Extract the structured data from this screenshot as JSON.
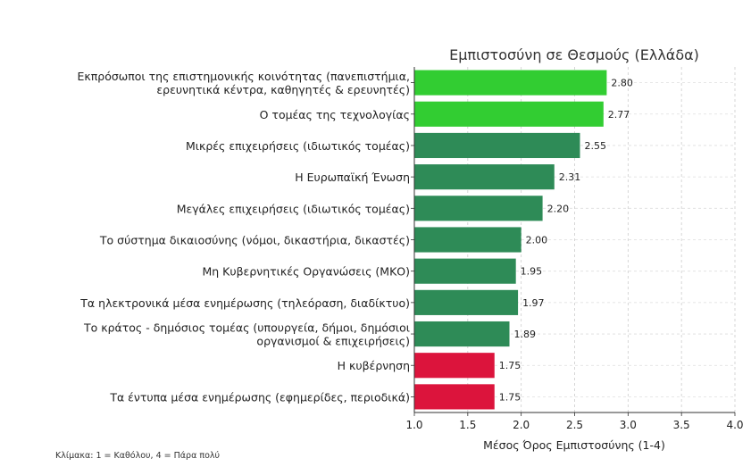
{
  "chart_data": {
    "type": "bar",
    "orientation": "horizontal",
    "title": "Εμπιστοσύνη σε Θεσμούς (Ελλάδα)",
    "xlabel": "Μέσος Όρος Εμπιστοσύνης (1-4)",
    "ylabel": "",
    "xlim": [
      1.0,
      4.0
    ],
    "xticks": [
      "1.0",
      "1.5",
      "2.0",
      "2.5",
      "3.0",
      "3.5",
      "4.0"
    ],
    "grid": true,
    "footnote": "Κλίμακα: 1 = Καθόλου, 4 = Πάρα πολύ",
    "colors": {
      "high": "#32cd32",
      "medium": "#2e8b57",
      "low": "#dc143c"
    },
    "bars": [
      {
        "label_lines": [
          "Εκπρόσωποι της επιστημονικής κοινότητας (πανεπιστήμια,",
          "ερευνητικά κέντρα, καθηγητές & ερευνητές)"
        ],
        "value": 2.8,
        "value_label": "2.80",
        "color": "#32cd32"
      },
      {
        "label_lines": [
          "Ο τομέας της τεχνολογίας"
        ],
        "value": 2.77,
        "value_label": "2.77",
        "color": "#32cd32"
      },
      {
        "label_lines": [
          "Μικρές επιχειρήσεις (ιδιωτικός τομέας)"
        ],
        "value": 2.55,
        "value_label": "2.55",
        "color": "#2e8b57"
      },
      {
        "label_lines": [
          "Η Ευρωπαϊκή Ένωση"
        ],
        "value": 2.31,
        "value_label": "2.31",
        "color": "#2e8b57"
      },
      {
        "label_lines": [
          "Μεγάλες επιχειρήσεις (ιδιωτικός τομέας)"
        ],
        "value": 2.2,
        "value_label": "2.20",
        "color": "#2e8b57"
      },
      {
        "label_lines": [
          "Το σύστημα δικαιοσύνης (νόμοι, δικαστήρια, δικαστές)"
        ],
        "value": 2.0,
        "value_label": "2.00",
        "color": "#2e8b57"
      },
      {
        "label_lines": [
          "Μη Κυβερνητικές Οργανώσεις (ΜΚΟ)"
        ],
        "value": 1.95,
        "value_label": "1.95",
        "color": "#2e8b57"
      },
      {
        "label_lines": [
          "Τα ηλεκτρονικά μέσα ενημέρωσης (τηλεόραση, διαδίκτυο)"
        ],
        "value": 1.97,
        "value_label": "1.97",
        "color": "#2e8b57"
      },
      {
        "label_lines": [
          "Το κράτος - δημόσιος τομέας (υπουργεία, δήμοι, δημόσιοι",
          "οργανισμοί & επιχειρήσεις)"
        ],
        "value": 1.89,
        "value_label": "1.89",
        "color": "#2e8b57"
      },
      {
        "label_lines": [
          "Η κυβέρνηση"
        ],
        "value": 1.75,
        "value_label": "1.75",
        "color": "#dc143c"
      },
      {
        "label_lines": [
          "Τα έντυπα μέσα ενημέρωσης (εφημερίδες, περιοδικά)"
        ],
        "value": 1.75,
        "value_label": "1.75",
        "color": "#dc143c"
      }
    ]
  }
}
